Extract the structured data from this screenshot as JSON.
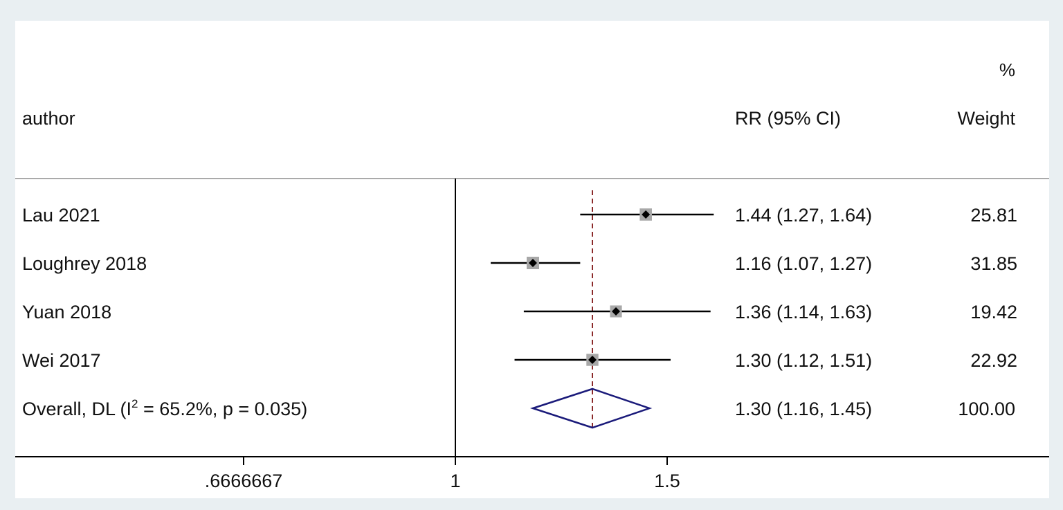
{
  "chart_data": {
    "type": "forest",
    "header": {
      "study_col": "author",
      "effect_col": "RR (95% CI)",
      "weight_col_top": "%",
      "weight_col": "Weight"
    },
    "studies": [
      {
        "label": "Lau 2021",
        "rr": 1.44,
        "lo": 1.27,
        "hi": 1.64,
        "ci_text": "1.44 (1.27, 1.64)",
        "weight": 25.81,
        "weight_text": "25.81"
      },
      {
        "label": "Loughrey 2018",
        "rr": 1.16,
        "lo": 1.07,
        "hi": 1.27,
        "ci_text": "1.16 (1.07, 1.27)",
        "weight": 31.85,
        "weight_text": "31.85"
      },
      {
        "label": "Yuan 2018",
        "rr": 1.36,
        "lo": 1.14,
        "hi": 1.63,
        "ci_text": "1.36 (1.14, 1.63)",
        "weight": 19.42,
        "weight_text": "19.42"
      },
      {
        "label": "Wei 2017",
        "rr": 1.3,
        "lo": 1.12,
        "hi": 1.51,
        "ci_text": "1.30 (1.12, 1.51)",
        "weight": 22.92,
        "weight_text": "22.92"
      }
    ],
    "overall": {
      "label_pre": "Overall, DL (I",
      "label_sup": "2",
      "label_post": " = 65.2%, p = 0.035)",
      "rr": 1.3,
      "lo": 1.16,
      "hi": 1.45,
      "ci_text": "1.30 (1.16, 1.45)",
      "weight_text": "100.00"
    },
    "x_axis": {
      "scale": "log",
      "ticks": [
        {
          "value": 0.6666667,
          "label": ".6666667"
        },
        {
          "value": 1,
          "label": "1"
        },
        {
          "value": 1.5,
          "label": "1.5"
        }
      ],
      "null_value": 1
    },
    "colors": {
      "ci_line": "#000000",
      "box": "#a8a8a8",
      "point": "#000000",
      "diamond": "#1a1a7a",
      "overall_line": "#8b2a2a",
      "rule": "#aaaaaa"
    }
  }
}
